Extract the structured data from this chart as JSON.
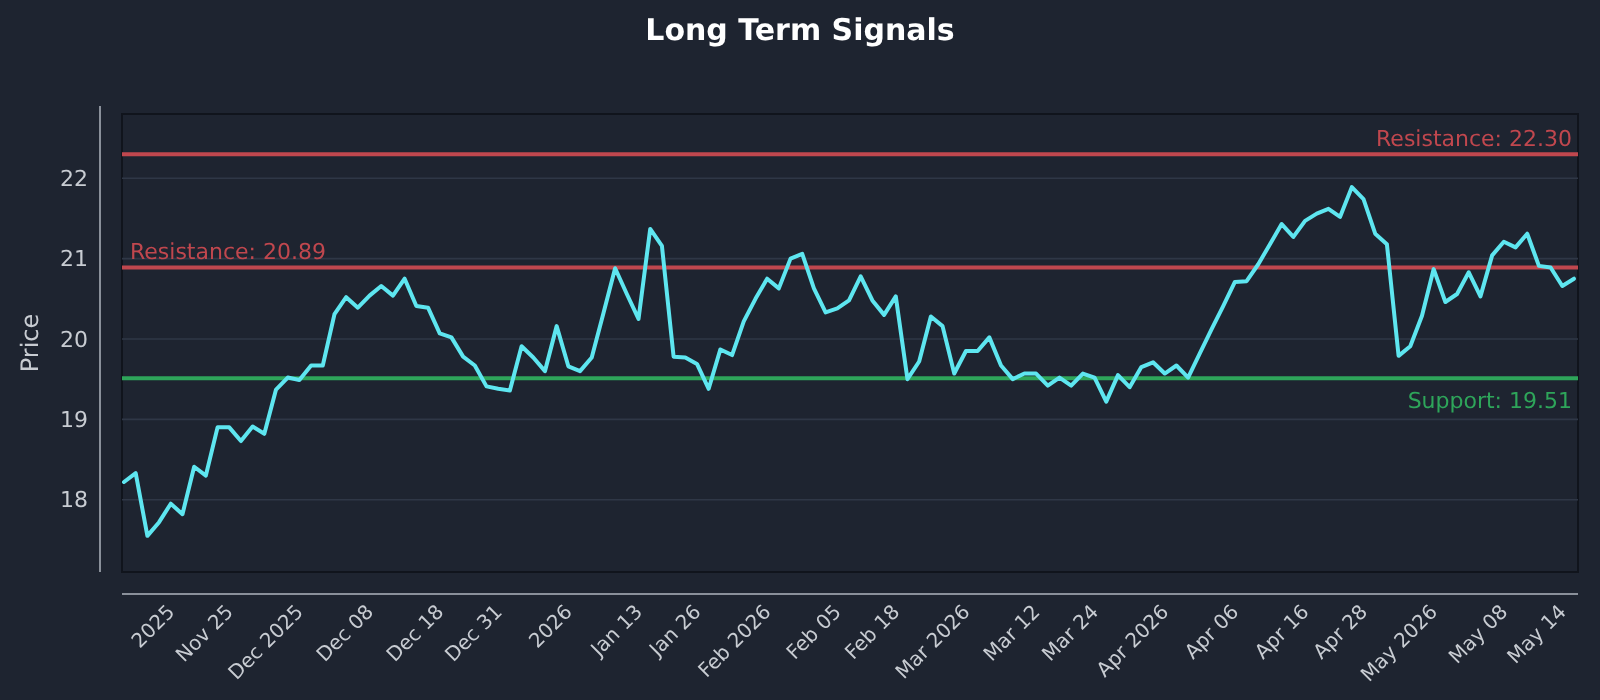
{
  "chart_data": {
    "type": "line",
    "title": "Long Term Signals",
    "ylabel": "Price",
    "categories": [
      null,
      null,
      null,
      null,
      "2025",
      null,
      null,
      null,
      null,
      "Nov 25",
      null,
      null,
      null,
      null,
      null,
      "Dec 2025",
      null,
      null,
      null,
      null,
      null,
      "Dec 08",
      null,
      null,
      null,
      null,
      null,
      "Dec 18",
      null,
      null,
      null,
      null,
      "Dec 31",
      null,
      null,
      null,
      null,
      null,
      "2026",
      null,
      null,
      null,
      null,
      null,
      "Jan 13",
      null,
      null,
      null,
      null,
      "Jan 26",
      null,
      null,
      null,
      null,
      null,
      "Feb 2026",
      null,
      null,
      null,
      null,
      null,
      "Feb 05",
      null,
      null,
      null,
      null,
      "Feb 18",
      null,
      null,
      null,
      null,
      null,
      "Mar 2026",
      null,
      null,
      null,
      null,
      null,
      "Mar 12",
      null,
      null,
      null,
      null,
      "Mar 24",
      null,
      null,
      null,
      null,
      null,
      "Apr 2026",
      null,
      null,
      null,
      null,
      null,
      "Apr 06",
      null,
      null,
      null,
      null,
      null,
      "Apr 16",
      null,
      null,
      null,
      null,
      "Apr 28",
      null,
      null,
      null,
      null,
      null,
      "May 2026",
      null,
      null,
      null,
      null,
      null,
      "May 08",
      null,
      null,
      null,
      null,
      "May 14",
      null
    ],
    "series": [
      {
        "color": "#5ee6f0",
        "values": [
          18.22,
          18.33,
          17.55,
          17.72,
          17.95,
          17.82,
          18.41,
          18.3,
          18.9,
          18.9,
          18.73,
          18.91,
          18.82,
          19.37,
          19.52,
          19.49,
          19.67,
          19.67,
          20.31,
          20.52,
          20.39,
          20.54,
          20.66,
          20.54,
          20.75,
          20.41,
          20.39,
          20.07,
          20.02,
          19.78,
          19.67,
          19.41,
          19.38,
          19.36,
          19.91,
          19.77,
          19.6,
          20.16,
          19.66,
          19.6,
          19.77,
          20.32,
          20.88,
          20.56,
          20.25,
          21.37,
          21.16,
          19.78,
          19.77,
          19.69,
          19.38,
          19.87,
          19.8,
          20.22,
          20.5,
          20.75,
          20.63,
          21.0,
          21.06,
          20.63,
          20.33,
          20.38,
          20.48,
          20.78,
          20.48,
          20.3,
          20.53,
          19.5,
          19.72,
          20.28,
          20.16,
          19.57,
          19.85,
          19.85,
          20.02,
          19.67,
          19.5,
          19.57,
          19.57,
          19.42,
          19.52,
          19.42,
          19.57,
          19.52,
          19.22,
          19.55,
          19.4,
          19.65,
          19.71,
          19.57,
          19.67,
          19.52,
          19.82,
          20.12,
          20.41,
          20.71,
          20.72,
          20.93,
          21.18,
          21.43,
          21.27,
          21.47,
          21.56,
          21.62,
          21.52,
          21.89,
          21.74,
          21.31,
          21.18,
          19.79,
          19.91,
          20.29,
          20.87,
          20.46,
          20.56,
          20.83,
          20.53,
          21.04,
          21.21,
          21.14,
          21.31,
          20.91,
          20.89,
          20.66,
          20.75
        ]
      }
    ],
    "ylim": [
      17.1,
      22.8
    ],
    "yticks": [
      18,
      19,
      20,
      21,
      22
    ],
    "grid": "y",
    "ref_lines": [
      {
        "axis": "y",
        "value": 22.3,
        "label": "Resistance: 22.30",
        "color": "#c0474e"
      },
      {
        "axis": "y",
        "value": 20.89,
        "label": "Resistance: 20.89",
        "color": "#c0474e"
      },
      {
        "axis": "y",
        "value": 19.51,
        "label": "Support: 19.51",
        "color": "#2ea55a"
      }
    ]
  }
}
